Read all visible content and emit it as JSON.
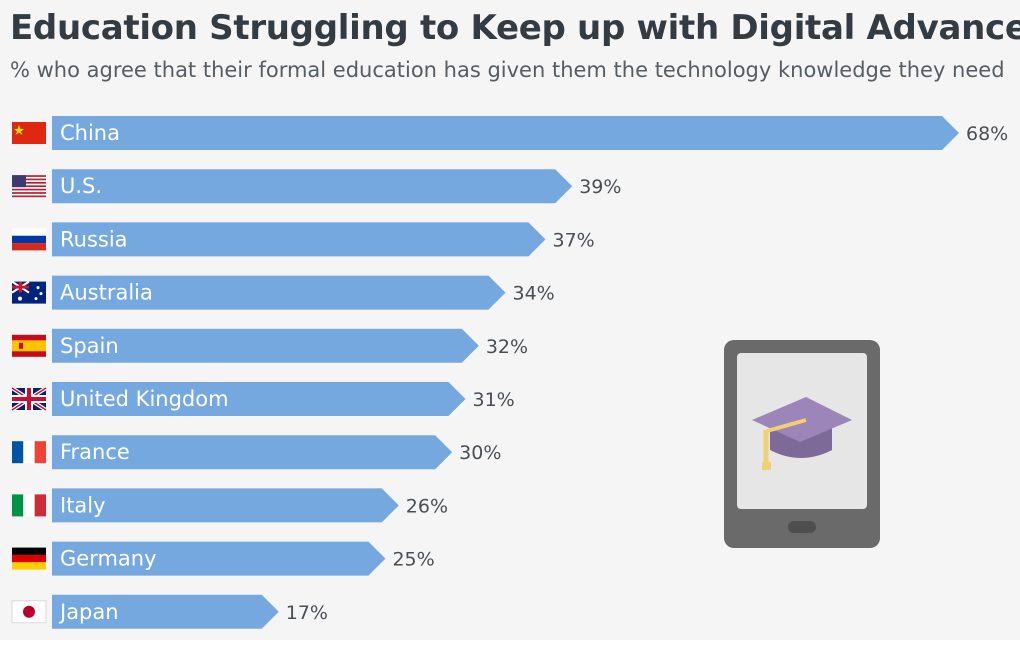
{
  "title": "Education Struggling to Keep up with Digital Advances",
  "subtitle": "% who agree that their formal education has given them the technology knowledge they need",
  "colors": {
    "bar": "#76a8e0",
    "background": "#f5f5f5",
    "tablet_body": "#6a6a6a",
    "tablet_screen": "#e6e6e6",
    "cap": "#9c85b8",
    "tassel": "#f3cf73"
  },
  "illustration": {
    "icon": "tablet-with-graduation-cap-icon"
  },
  "chart_data": {
    "type": "bar",
    "orientation": "horizontal",
    "categories": [
      "China",
      "U.S.",
      "Russia",
      "Australia",
      "Spain",
      "United Kingdom",
      "France",
      "Italy",
      "Germany",
      "Japan"
    ],
    "value_labels": [
      "68%",
      "39%",
      "37%",
      "34%",
      "32%",
      "31%",
      "30%",
      "26%",
      "25%",
      "17%"
    ],
    "values": [
      68,
      39,
      37,
      34,
      32,
      31,
      30,
      26,
      25,
      17
    ],
    "flags": [
      "china-flag-icon",
      "us-flag-icon",
      "russia-flag-icon",
      "australia-flag-icon",
      "spain-flag-icon",
      "uk-flag-icon",
      "france-flag-icon",
      "italy-flag-icon",
      "germany-flag-icon",
      "japan-flag-icon"
    ],
    "title": "Education Struggling to Keep up with Digital Advances",
    "xlabel": "",
    "ylabel": "",
    "xlim": [
      0,
      68
    ],
    "grid": false,
    "legend": "none"
  }
}
